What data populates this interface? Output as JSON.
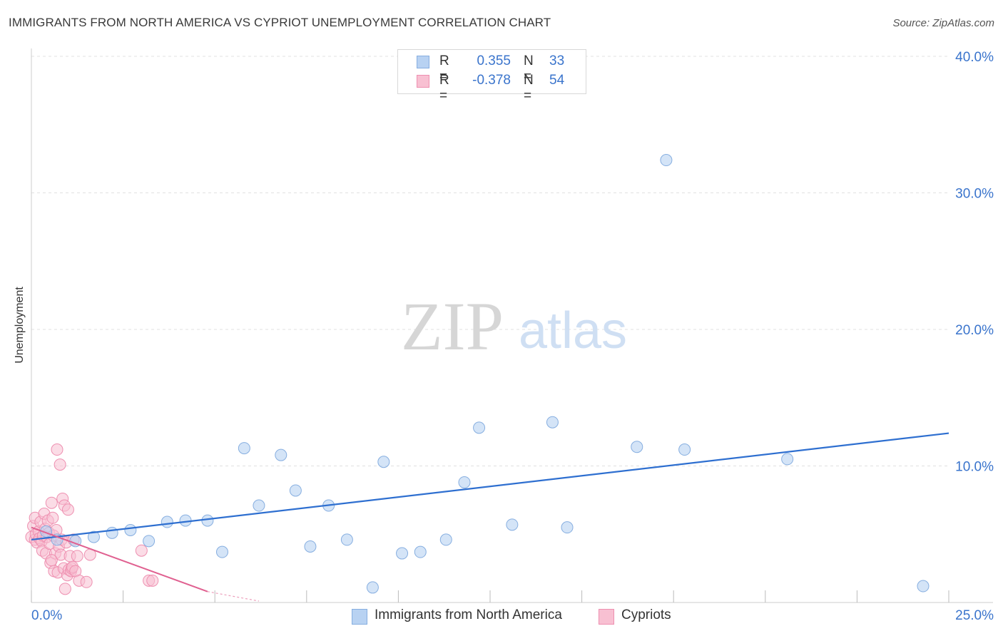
{
  "title": "IMMIGRANTS FROM NORTH AMERICA VS CYPRIOT UNEMPLOYMENT CORRELATION CHART",
  "source": "Source: ZipAtlas.com",
  "watermark": {
    "zip": "ZIP",
    "atlas": "atlas"
  },
  "legend": {
    "r_label": "R =",
    "n_label": "N =",
    "rows": [
      {
        "r": "0.355",
        "n": "33"
      },
      {
        "r": "-0.378",
        "n": "54"
      }
    ]
  },
  "colors": {
    "blue_fill": "#b8d2f2",
    "blue_stroke": "#86aee0",
    "blue_line": "#2e6fd0",
    "pink_fill": "#f8c0d2",
    "pink_stroke": "#ee8fb0",
    "pink_line": "#e06090",
    "value_text": "#3a74cc",
    "grid": "#e0e0e0"
  },
  "chart_data": {
    "type": "scatter",
    "title": "IMMIGRANTS FROM NORTH AMERICA VS CYPRIOT UNEMPLOYMENT CORRELATION CHART",
    "xlabel": "",
    "ylabel": "Unemployment",
    "xlim": [
      0,
      25
    ],
    "ylim": [
      0,
      42
    ],
    "x_tick_labels": [
      {
        "value": 0,
        "label": "0.0%"
      },
      {
        "value": 25,
        "label": "25.0%"
      }
    ],
    "y_tick_labels": [
      {
        "value": 10,
        "label": "10.0%"
      },
      {
        "value": 20,
        "label": "20.0%"
      },
      {
        "value": 30,
        "label": "30.0%"
      },
      {
        "value": 40,
        "label": "40.0%"
      }
    ],
    "grid": true,
    "legend_position": "top-center",
    "series": [
      {
        "name": "Immigrants from North America",
        "color": "#b8d2f2",
        "r": 0.355,
        "n": 33,
        "trend": {
          "x": [
            0,
            25
          ],
          "y": [
            4.6,
            12.4
          ]
        },
        "points": [
          [
            0.7,
            4.6
          ],
          [
            1.2,
            4.5
          ],
          [
            1.7,
            4.8
          ],
          [
            2.2,
            5.1
          ],
          [
            2.7,
            5.3
          ],
          [
            3.2,
            4.5
          ],
          [
            3.7,
            5.9
          ],
          [
            4.2,
            6.0
          ],
          [
            4.8,
            6.0
          ],
          [
            5.2,
            3.7
          ],
          [
            5.8,
            11.3
          ],
          [
            6.2,
            7.1
          ],
          [
            6.8,
            10.8
          ],
          [
            7.2,
            8.2
          ],
          [
            7.6,
            4.1
          ],
          [
            8.1,
            7.1
          ],
          [
            8.6,
            4.6
          ],
          [
            9.3,
            1.1
          ],
          [
            9.6,
            10.3
          ],
          [
            10.1,
            3.6
          ],
          [
            10.6,
            3.7
          ],
          [
            11.3,
            4.6
          ],
          [
            11.8,
            8.8
          ],
          [
            12.2,
            12.8
          ],
          [
            13.1,
            5.7
          ],
          [
            14.2,
            13.2
          ],
          [
            14.6,
            5.5
          ],
          [
            16.5,
            11.4
          ],
          [
            17.3,
            32.4
          ],
          [
            17.8,
            11.2
          ],
          [
            20.6,
            10.5
          ],
          [
            24.3,
            1.2
          ],
          [
            0.4,
            5.2
          ]
        ]
      },
      {
        "name": "Cypriots",
        "color": "#f8c0d2",
        "r": -0.378,
        "n": 54,
        "trend": {
          "x": [
            0,
            4.8
          ],
          "y": [
            5.5,
            0.8
          ]
        },
        "trend_ext": {
          "x": [
            4.8,
            6.2
          ],
          "y": [
            0.8,
            -0.6
          ]
        },
        "points": [
          [
            0.0,
            4.8
          ],
          [
            0.05,
            5.6
          ],
          [
            0.1,
            6.2
          ],
          [
            0.1,
            4.6
          ],
          [
            0.12,
            5.0
          ],
          [
            0.15,
            4.4
          ],
          [
            0.2,
            5.2
          ],
          [
            0.22,
            4.7
          ],
          [
            0.25,
            5.9
          ],
          [
            0.28,
            4.5
          ],
          [
            0.3,
            3.8
          ],
          [
            0.32,
            4.9
          ],
          [
            0.35,
            6.5
          ],
          [
            0.38,
            5.4
          ],
          [
            0.4,
            3.6
          ],
          [
            0.42,
            4.8
          ],
          [
            0.45,
            6.0
          ],
          [
            0.48,
            5.1
          ],
          [
            0.5,
            4.3
          ],
          [
            0.52,
            2.9
          ],
          [
            0.55,
            7.3
          ],
          [
            0.58,
            6.2
          ],
          [
            0.6,
            4.9
          ],
          [
            0.62,
            2.3
          ],
          [
            0.65,
            3.6
          ],
          [
            0.68,
            5.3
          ],
          [
            0.7,
            11.2
          ],
          [
            0.72,
            2.2
          ],
          [
            0.75,
            4.1
          ],
          [
            0.78,
            10.1
          ],
          [
            0.8,
            3.5
          ],
          [
            0.82,
            4.6
          ],
          [
            0.85,
            7.6
          ],
          [
            0.88,
            2.5
          ],
          [
            0.9,
            7.1
          ],
          [
            0.92,
            1.0
          ],
          [
            0.95,
            4.4
          ],
          [
            0.98,
            2.0
          ],
          [
            1.0,
            6.8
          ],
          [
            1.02,
            2.4
          ],
          [
            1.05,
            3.4
          ],
          [
            1.08,
            2.3
          ],
          [
            1.1,
            2.5
          ],
          [
            1.12,
            2.6
          ],
          [
            1.15,
            4.6
          ],
          [
            1.2,
            2.3
          ],
          [
            1.25,
            3.4
          ],
          [
            1.3,
            1.6
          ],
          [
            1.5,
            1.5
          ],
          [
            1.6,
            3.5
          ],
          [
            3.0,
            3.8
          ],
          [
            3.2,
            1.6
          ],
          [
            3.3,
            1.6
          ],
          [
            0.55,
            3.1
          ]
        ]
      }
    ]
  }
}
